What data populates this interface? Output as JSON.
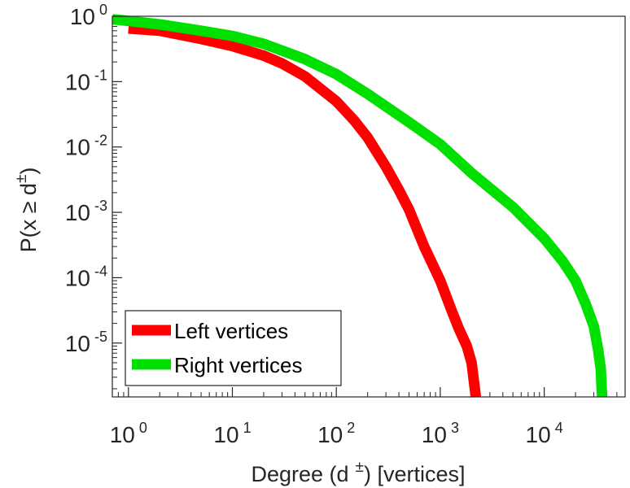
{
  "chart_data": {
    "type": "line",
    "xscale": "log",
    "yscale": "log",
    "xlim": [
      0.7,
      60000
    ],
    "ylim": [
      1.5e-06,
      1
    ],
    "xlabel": {
      "prefix": "Degree (d",
      "sup": "±",
      "suffix": ") [vertices]"
    },
    "ylabel": {
      "prefix": "P(x ≥ d",
      "sup": "±",
      "suffix": ")"
    },
    "xticks": [
      {
        "base": "10",
        "exp": "0",
        "value": 1
      },
      {
        "base": "10",
        "exp": "1",
        "value": 10
      },
      {
        "base": "10",
        "exp": "2",
        "value": 100
      },
      {
        "base": "10",
        "exp": "3",
        "value": 1000
      },
      {
        "base": "10",
        "exp": "4",
        "value": 10000
      }
    ],
    "yticks": [
      {
        "base": "10",
        "exp": "0",
        "value": 1
      },
      {
        "base": "10",
        "exp": "-1",
        "value": 0.1
      },
      {
        "base": "10",
        "exp": "-2",
        "value": 0.01
      },
      {
        "base": "10",
        "exp": "-3",
        "value": 0.001
      },
      {
        "base": "10",
        "exp": "-4",
        "value": 0.0001
      },
      {
        "base": "10",
        "exp": "-5",
        "value": 1e-05
      }
    ],
    "legend_position": "bottom-left",
    "grid": false,
    "series": [
      {
        "name": "Left vertices",
        "color": "#ff0000",
        "x": [
          1,
          2,
          3,
          5,
          10,
          20,
          30,
          50,
          100,
          150,
          200,
          300,
          400,
          500,
          700,
          1000,
          1300,
          1500,
          1800,
          2000,
          2200
        ],
        "y": [
          0.65,
          0.6,
          0.53,
          0.45,
          0.35,
          0.25,
          0.19,
          0.12,
          0.05,
          0.025,
          0.014,
          0.005,
          0.0022,
          0.0011,
          0.0003,
          9e-05,
          3e-05,
          1.7e-05,
          9e-06,
          5e-06,
          1.5e-06
        ]
      },
      {
        "name": "Right vertices",
        "color": "#00e000",
        "x": [
          0.7,
          1,
          2,
          5,
          10,
          20,
          50,
          100,
          200,
          500,
          1000,
          2000,
          5000,
          10000,
          15000,
          20000,
          25000,
          30000,
          33000,
          35000,
          36000
        ],
        "y": [
          0.9,
          0.85,
          0.75,
          0.6,
          0.5,
          0.38,
          0.22,
          0.13,
          0.065,
          0.024,
          0.011,
          0.004,
          0.0012,
          0.0004,
          0.00018,
          9e-05,
          4e-05,
          1.8e-05,
          8e-06,
          4e-06,
          1.5e-06
        ]
      }
    ]
  }
}
